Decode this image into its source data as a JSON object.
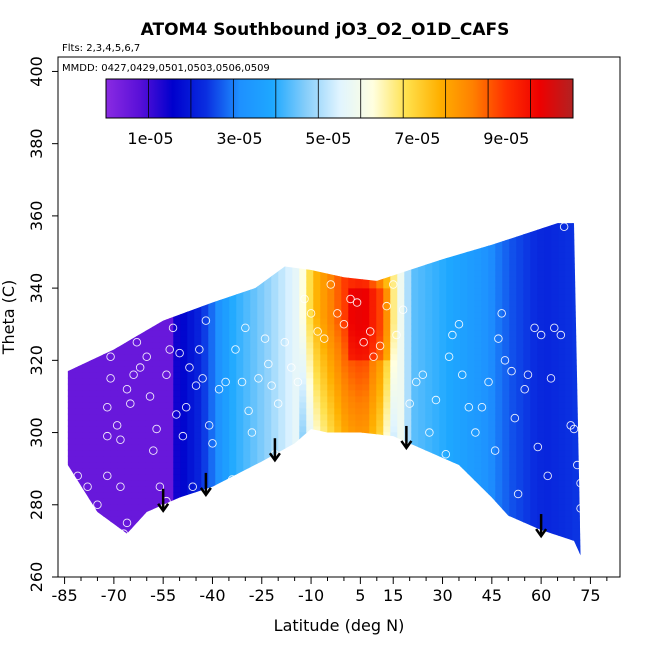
{
  "header": {
    "title": "ATOM4 Southbound jO3_O2_O1D_CAFS",
    "flights": "Flts: 2,3,4,5,6,7",
    "mmdd": "MMDD: 0427,0429,0501,0503,0506,0509"
  },
  "chart_data": {
    "type": "heatmap",
    "title": "ATOM4 Southbound jO3_O2_O1D_CAFS",
    "xlabel": "Latitude (deg N)",
    "ylabel": "Theta (C)",
    "xlim": [
      -87,
      84
    ],
    "ylim": [
      260,
      404
    ],
    "x_ticks": [
      -85,
      -70,
      -55,
      -40,
      -25,
      -10,
      5,
      15,
      30,
      45,
      60,
      75
    ],
    "y_ticks": [
      260,
      280,
      300,
      320,
      340,
      360,
      380,
      400
    ],
    "colorbar": {
      "range": [
        0,
        0.000105
      ],
      "tick_values": [
        1e-05,
        3e-05,
        5e-05,
        7e-05,
        9e-05
      ],
      "tick_labels": [
        "1e-05",
        "3e-05",
        "5e-05",
        "7e-05",
        "9e-05"
      ],
      "colors": [
        "#8a2be2",
        "#5a10d8",
        "#0000cd",
        "#0a2ee0",
        "#1e90ff",
        "#1ea8ff",
        "#87cefa",
        "#e0f4ff",
        "#ffffe0",
        "#ffe14d",
        "#ffb000",
        "#ff8000",
        "#ff3000",
        "#ee0000",
        "#b22222"
      ]
    },
    "upper_boundary": [
      [
        -84,
        317
      ],
      [
        -70,
        323
      ],
      [
        -55,
        331
      ],
      [
        -40,
        336
      ],
      [
        -27,
        340
      ],
      [
        -18,
        346
      ],
      [
        -10,
        345
      ],
      [
        0,
        343
      ],
      [
        10,
        342
      ],
      [
        20,
        345
      ],
      [
        30,
        348
      ],
      [
        45,
        352
      ],
      [
        55,
        355
      ],
      [
        65,
        358
      ],
      [
        70,
        358
      ]
    ],
    "lower_boundary": [
      [
        -84,
        291
      ],
      [
        -75,
        278
      ],
      [
        -66,
        272
      ],
      [
        -60,
        278
      ],
      [
        -50,
        282
      ],
      [
        -40,
        285
      ],
      [
        -25,
        292
      ],
      [
        -15,
        297
      ],
      [
        -10,
        301
      ],
      [
        -5,
        300
      ],
      [
        5,
        300
      ],
      [
        15,
        299
      ],
      [
        25,
        295
      ],
      [
        35,
        291
      ],
      [
        45,
        282
      ],
      [
        50,
        277
      ],
      [
        60,
        273
      ],
      [
        70,
        270
      ],
      [
        72,
        266
      ]
    ],
    "arrows_latitude": [
      -55,
      -42,
      -21,
      19,
      60
    ],
    "points": [
      [
        -81,
        288
      ],
      [
        -78,
        285
      ],
      [
        -75,
        280
      ],
      [
        -72,
        288
      ],
      [
        -72,
        299
      ],
      [
        -72,
        307
      ],
      [
        -71,
        315
      ],
      [
        -71,
        321
      ],
      [
        -70,
        326
      ],
      [
        -69,
        302
      ],
      [
        -68,
        298
      ],
      [
        -68,
        285
      ],
      [
        -67,
        272
      ],
      [
        -66,
        275
      ],
      [
        -66,
        312
      ],
      [
        -65,
        308
      ],
      [
        -64,
        316
      ],
      [
        -63,
        325
      ],
      [
        -62,
        318
      ],
      [
        -60,
        321
      ],
      [
        -59,
        310
      ],
      [
        -58,
        295
      ],
      [
        -57,
        301
      ],
      [
        -56,
        285
      ],
      [
        -55,
        279
      ],
      [
        -54,
        281
      ],
      [
        -54,
        316
      ],
      [
        -53,
        323
      ],
      [
        -52,
        329
      ],
      [
        -51,
        305
      ],
      [
        -50,
        322
      ],
      [
        -49,
        299
      ],
      [
        -48,
        307
      ],
      [
        -47,
        318
      ],
      [
        -46,
        285
      ],
      [
        -45,
        313
      ],
      [
        -44,
        323
      ],
      [
        -43,
        315
      ],
      [
        -42,
        331
      ],
      [
        -41,
        302
      ],
      [
        -40,
        297
      ],
      [
        -38,
        312
      ],
      [
        -36,
        314
      ],
      [
        -34,
        287
      ],
      [
        -33,
        323
      ],
      [
        -31,
        314
      ],
      [
        -30,
        329
      ],
      [
        -29,
        306
      ],
      [
        -28,
        300
      ],
      [
        -26,
        315
      ],
      [
        -24,
        326
      ],
      [
        -23,
        319
      ],
      [
        -22,
        313
      ],
      [
        -21,
        294
      ],
      [
        -20,
        308
      ],
      [
        -18,
        325
      ],
      [
        -16,
        318
      ],
      [
        -14,
        314
      ],
      [
        -12,
        337
      ],
      [
        -10,
        333
      ],
      [
        -8,
        328
      ],
      [
        -6,
        326
      ],
      [
        -4,
        341
      ],
      [
        -2,
        333
      ],
      [
        0,
        330
      ],
      [
        2,
        337
      ],
      [
        4,
        336
      ],
      [
        6,
        325
      ],
      [
        8,
        328
      ],
      [
        9,
        321
      ],
      [
        11,
        324
      ],
      [
        13,
        335
      ],
      [
        15,
        341
      ],
      [
        16,
        327
      ],
      [
        18,
        334
      ],
      [
        20,
        308
      ],
      [
        22,
        314
      ],
      [
        24,
        316
      ],
      [
        26,
        300
      ],
      [
        28,
        309
      ],
      [
        29,
        291
      ],
      [
        31,
        294
      ],
      [
        32,
        321
      ],
      [
        33,
        327
      ],
      [
        35,
        330
      ],
      [
        36,
        316
      ],
      [
        38,
        307
      ],
      [
        40,
        300
      ],
      [
        42,
        307
      ],
      [
        44,
        314
      ],
      [
        45,
        280
      ],
      [
        46,
        295
      ],
      [
        47,
        326
      ],
      [
        48,
        333
      ],
      [
        49,
        320
      ],
      [
        51,
        317
      ],
      [
        52,
        304
      ],
      [
        53,
        283
      ],
      [
        55,
        312
      ],
      [
        56,
        316
      ],
      [
        58,
        329
      ],
      [
        59,
        296
      ],
      [
        60,
        327
      ],
      [
        62,
        288
      ],
      [
        63,
        315
      ],
      [
        64,
        329
      ],
      [
        66,
        327
      ],
      [
        67,
        357
      ],
      [
        69,
        302
      ],
      [
        70,
        301
      ],
      [
        71,
        291
      ],
      [
        72,
        286
      ],
      [
        72,
        279
      ]
    ]
  }
}
